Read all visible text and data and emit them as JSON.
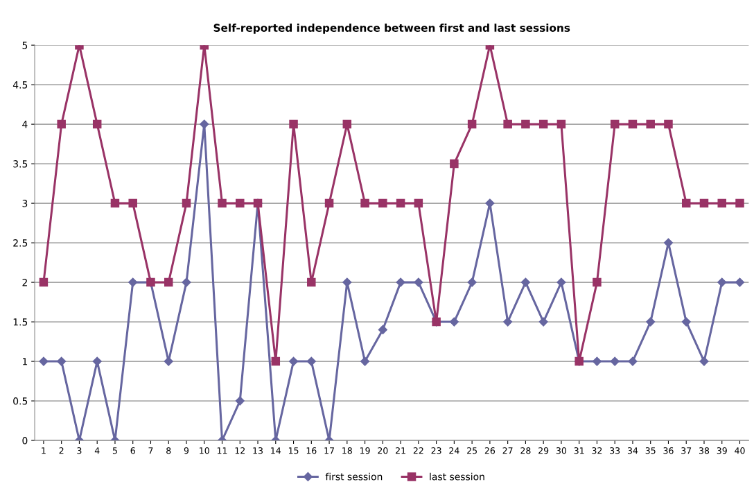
{
  "chart_data": {
    "type": "line",
    "title": "Self-reported independence between first and last sessions",
    "categories": [
      "1",
      "2",
      "3",
      "4",
      "5",
      "6",
      "7",
      "8",
      "9",
      "10",
      "11",
      "12",
      "13",
      "14",
      "15",
      "16",
      "17",
      "18",
      "19",
      "20",
      "21",
      "22",
      "23",
      "24",
      "25",
      "26",
      "27",
      "28",
      "29",
      "30",
      "31",
      "32",
      "33",
      "34",
      "35",
      "36",
      "37",
      "38",
      "39",
      "40"
    ],
    "series": [
      {
        "name": "first session",
        "color": "#6666a0",
        "marker": "diamond",
        "values": [
          1,
          1,
          0,
          1,
          0,
          2,
          2,
          1,
          2,
          4,
          0,
          0.5,
          3,
          0,
          1,
          1,
          0,
          2,
          1,
          1.4,
          2,
          2,
          1.5,
          1.5,
          2,
          3,
          1.5,
          2,
          1.5,
          2,
          1,
          1,
          1,
          1,
          1.5,
          2.5,
          1.5,
          1,
          2,
          2
        ]
      },
      {
        "name": "last session",
        "color": "#993366",
        "marker": "square",
        "values": [
          2,
          4,
          5,
          4,
          3,
          3,
          2,
          2,
          3,
          5,
          3,
          3,
          3,
          1,
          4,
          2,
          3,
          4,
          3,
          3,
          3,
          3,
          1.5,
          3.5,
          4,
          5,
          4,
          4,
          4,
          4,
          1,
          2,
          4,
          4,
          4,
          4,
          3,
          3,
          3,
          3
        ]
      }
    ],
    "ylim": [
      0,
      5
    ],
    "yticks": [
      0,
      0.5,
      1,
      1.5,
      2,
      2.5,
      3,
      3.5,
      4,
      4.5,
      5
    ],
    "grid": "y",
    "legend": "bottom",
    "line_style": "solid"
  }
}
